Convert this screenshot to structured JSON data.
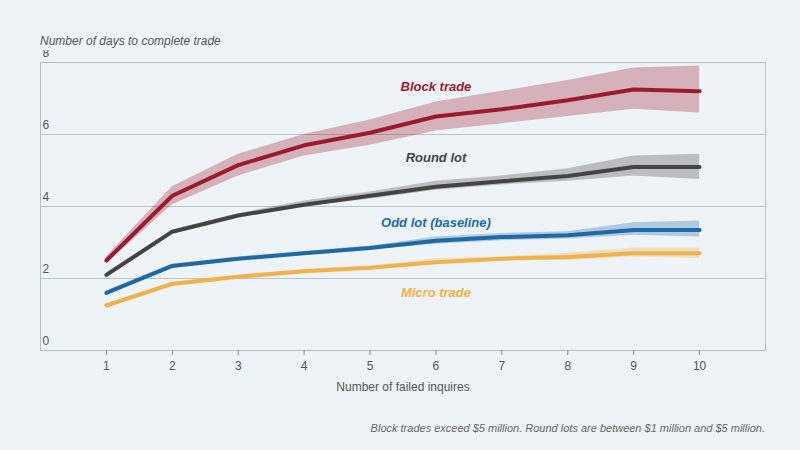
{
  "chart_data": {
    "type": "line",
    "y_label": "Number of days to complete trade",
    "x_label": "Number of failed inquires",
    "caption": "Block trades exceed $5 million. Round lots are between $1 million and $5 million.",
    "x": [
      1,
      2,
      3,
      4,
      5,
      6,
      7,
      8,
      9,
      10
    ],
    "xlim": [
      0,
      11
    ],
    "xticks": [
      1,
      2,
      3,
      4,
      5,
      6,
      7,
      8,
      9,
      10
    ],
    "ylim": [
      0,
      8
    ],
    "yticks": [
      0,
      2,
      4,
      6,
      8
    ],
    "grid": true,
    "series": [
      {
        "name": "Block trade",
        "color": "#9b1b2e",
        "values": [
          2.5,
          4.3,
          5.15,
          5.7,
          6.05,
          6.5,
          6.7,
          6.95,
          7.25,
          7.2
        ],
        "lower": [
          2.4,
          4.05,
          4.85,
          5.4,
          5.7,
          6.1,
          6.3,
          6.5,
          6.7,
          6.6
        ],
        "upper": [
          2.6,
          4.55,
          5.45,
          6.0,
          6.4,
          6.9,
          7.2,
          7.5,
          7.85,
          7.9
        ]
      },
      {
        "name": "Round lot",
        "color": "#444444",
        "values": [
          2.1,
          3.3,
          3.75,
          4.05,
          4.3,
          4.55,
          4.7,
          4.85,
          5.1,
          5.1
        ],
        "lower": [
          2.05,
          3.25,
          3.7,
          4.0,
          4.2,
          4.45,
          4.6,
          4.7,
          4.85,
          4.75
        ],
        "upper": [
          2.15,
          3.35,
          3.8,
          4.15,
          4.4,
          4.7,
          4.85,
          5.05,
          5.4,
          5.45
        ]
      },
      {
        "name": "Odd lot (baseline)",
        "color": "#1f6aa5",
        "values": [
          1.6,
          2.35,
          2.55,
          2.7,
          2.85,
          3.05,
          3.15,
          3.2,
          3.35,
          3.35
        ],
        "lower": [
          1.55,
          2.3,
          2.5,
          2.65,
          2.8,
          2.95,
          3.05,
          3.1,
          3.2,
          3.15
        ],
        "upper": [
          1.65,
          2.4,
          2.6,
          2.75,
          2.9,
          3.15,
          3.25,
          3.3,
          3.55,
          3.6
        ]
      },
      {
        "name": "Micro trade",
        "color": "#f0b24a",
        "values": [
          1.25,
          1.85,
          2.05,
          2.2,
          2.3,
          2.45,
          2.55,
          2.6,
          2.7,
          2.7
        ],
        "lower": [
          1.2,
          1.8,
          2.0,
          2.15,
          2.25,
          2.4,
          2.5,
          2.5,
          2.6,
          2.55
        ],
        "upper": [
          1.3,
          1.9,
          2.1,
          2.25,
          2.35,
          2.55,
          2.6,
          2.7,
          2.85,
          2.85
        ]
      }
    ]
  }
}
